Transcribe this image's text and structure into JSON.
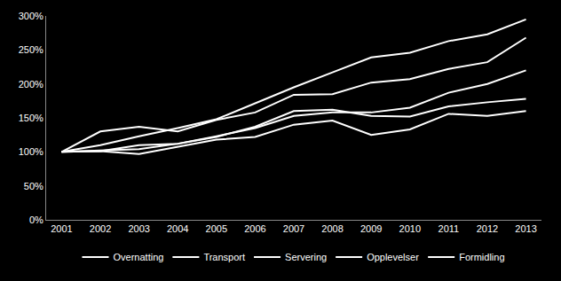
{
  "chart_data": {
    "type": "line",
    "categories": [
      "2001",
      "2002",
      "2003",
      "2004",
      "2005",
      "2006",
      "2007",
      "2008",
      "2009",
      "2010",
      "2011",
      "2012",
      "2013"
    ],
    "series": [
      {
        "name": "Overnatting",
        "color": "#ffffff",
        "values": [
          100,
          110,
          123,
          135,
          148,
          172,
          195,
          217,
          239,
          246,
          263,
          273,
          295
        ]
      },
      {
        "name": "Transport",
        "color": "#ffffff",
        "values": [
          100,
          130,
          137,
          130,
          147,
          158,
          184,
          185,
          202,
          207,
          222,
          232,
          268
        ]
      },
      {
        "name": "Servering",
        "color": "#ffffff",
        "values": [
          100,
          101,
          110,
          112,
          123,
          135,
          153,
          158,
          158,
          165,
          187,
          200,
          220
        ]
      },
      {
        "name": "Opplevelser",
        "color": "#ffffff",
        "values": [
          100,
          102,
          104,
          112,
          122,
          137,
          160,
          162,
          153,
          152,
          167,
          173,
          178
        ]
      },
      {
        "name": "Formidling",
        "color": "#ffffff",
        "values": [
          100,
          101,
          97,
          108,
          118,
          122,
          140,
          146,
          125,
          133,
          156,
          153,
          160
        ]
      }
    ],
    "ylim": [
      0,
      300
    ],
    "yticks": [
      {
        "value": 0,
        "label": "0%"
      },
      {
        "value": 50,
        "label": "50%"
      },
      {
        "value": 100,
        "label": "100%"
      },
      {
        "value": 150,
        "label": "150%"
      },
      {
        "value": 200,
        "label": "200%"
      },
      {
        "value": 250,
        "label": "250%"
      },
      {
        "value": 300,
        "label": "300%"
      }
    ],
    "grid": false,
    "legend": "bottom"
  }
}
